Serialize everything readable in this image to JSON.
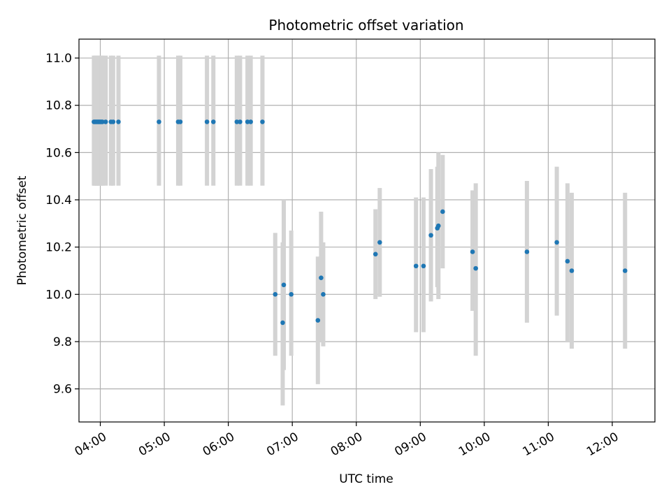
{
  "chart_data": {
    "type": "scatter",
    "title": "Photometric offset variation",
    "xlabel": "UTC time",
    "ylabel": "Photometric offset",
    "grid": true,
    "legend": "none",
    "x_range": [
      "03:40",
      "12:40"
    ],
    "ylim": [
      9.46,
      11.08
    ],
    "x_ticks": [
      "04:00",
      "05:00",
      "06:00",
      "07:00",
      "08:00",
      "09:00",
      "10:00",
      "11:00",
      "12:00"
    ],
    "y_ticks": [
      "9.6",
      "9.8",
      "10.0",
      "10.2",
      "10.4",
      "10.6",
      "10.8",
      "11.0"
    ],
    "colors": {
      "marker": "#1f77b4",
      "errorbar": "#d3d3d3"
    },
    "series": [
      {
        "x": [
          "03:54",
          "03:55",
          "03:56",
          "03:57",
          "03:58",
          "03:59",
          "04:00",
          "04:01",
          "04:02",
          "04:05",
          "04:10",
          "04:12",
          "04:17",
          "04:55",
          "05:13",
          "05:15",
          "05:40",
          "05:46",
          "06:08",
          "06:11",
          "06:18",
          "06:21",
          "06:32",
          "06:44",
          "06:51",
          "06:52",
          "06:59",
          "07:24",
          "07:27",
          "07:29",
          "08:18",
          "08:22",
          "08:56",
          "09:03",
          "09:10",
          "09:16",
          "09:17",
          "09:21",
          "09:49",
          "09:52",
          "10:40",
          "11:08",
          "11:18",
          "11:22",
          "12:12"
        ],
        "y": [
          10.73,
          10.73,
          10.73,
          10.73,
          10.73,
          10.73,
          10.73,
          10.73,
          10.73,
          10.73,
          10.73,
          10.73,
          10.73,
          10.73,
          10.73,
          10.73,
          10.73,
          10.73,
          10.73,
          10.73,
          10.73,
          10.73,
          10.73,
          10.0,
          9.88,
          10.04,
          10.0,
          9.89,
          10.07,
          10.0,
          10.17,
          10.22,
          10.12,
          10.12,
          10.25,
          10.28,
          10.29,
          10.35,
          10.18,
          10.11,
          10.18,
          10.22,
          10.14,
          10.1,
          10.1
        ],
        "err_low": [
          10.46,
          10.46,
          10.46,
          10.46,
          10.46,
          10.46,
          10.46,
          10.46,
          10.46,
          10.46,
          10.46,
          10.46,
          10.46,
          10.46,
          10.46,
          10.46,
          10.46,
          10.46,
          10.46,
          10.46,
          10.46,
          10.46,
          10.46,
          9.74,
          9.53,
          9.68,
          9.74,
          9.62,
          9.8,
          9.78,
          9.98,
          9.99,
          9.84,
          9.84,
          9.97,
          10.03,
          9.98,
          10.11,
          9.93,
          9.74,
          9.88,
          9.91,
          9.8,
          9.77,
          9.77
        ],
        "err_high": [
          11.01,
          11.01,
          11.01,
          11.01,
          11.01,
          11.01,
          11.01,
          11.01,
          11.01,
          11.01,
          11.01,
          11.01,
          11.01,
          11.01,
          11.01,
          11.01,
          11.01,
          11.01,
          11.01,
          11.01,
          11.01,
          11.01,
          11.01,
          10.26,
          10.22,
          10.4,
          10.27,
          10.16,
          10.35,
          10.22,
          10.36,
          10.45,
          10.41,
          10.41,
          10.53,
          10.54,
          10.6,
          10.59,
          10.44,
          10.47,
          10.48,
          10.54,
          10.47,
          10.43,
          10.43
        ]
      }
    ]
  }
}
